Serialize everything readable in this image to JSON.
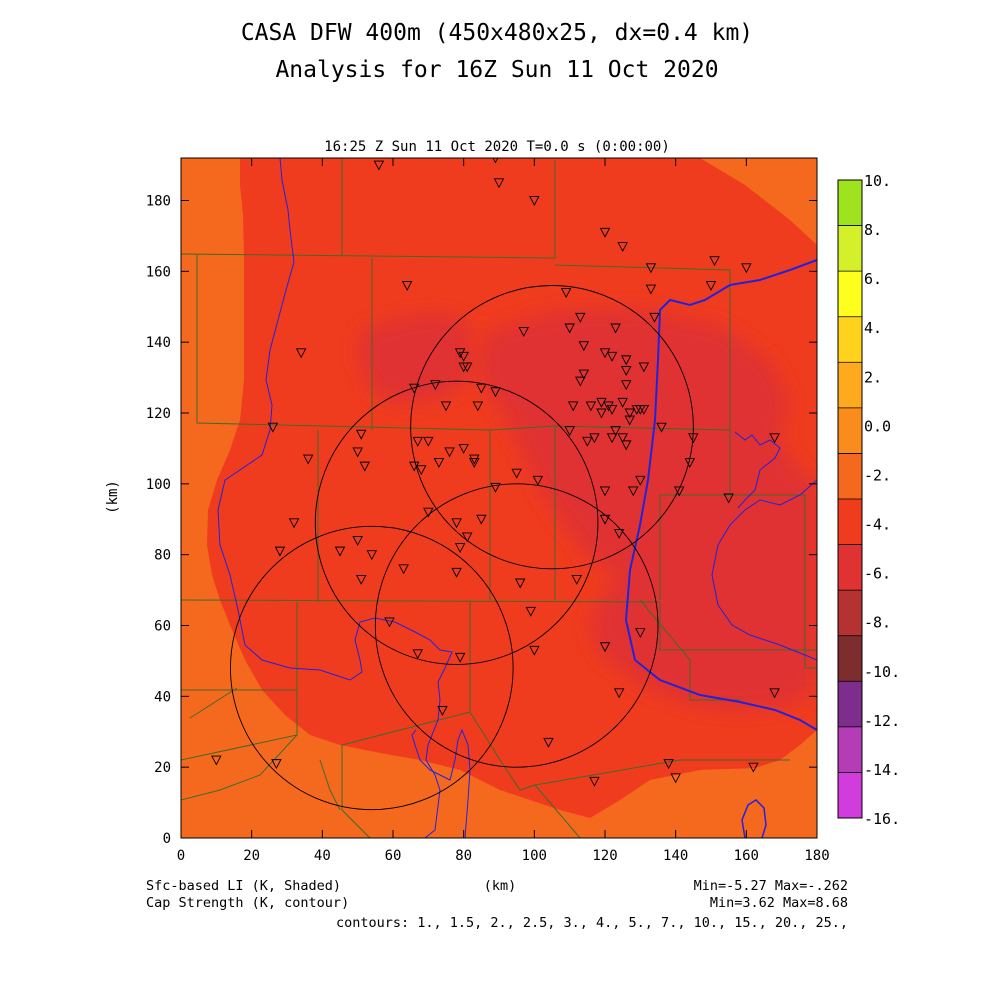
{
  "title": {
    "line1": "CASA DFW 400m (450x480x25, dx=0.4 km)",
    "line2": "Analysis for 16Z Sun 11 Oct 2020"
  },
  "subtitle": "16:25 Z Sun 11 Oct 2020   T=0.0 s (0:00:00)",
  "footer": {
    "shaded_label": "Sfc-based LI (K, Shaded)",
    "contour_label": "Cap Strength (K, contour)",
    "xunit": "(km)",
    "minmax1": "Min=-5.27 Max=-.262",
    "minmax2": "Min=3.62 Max=8.68",
    "contours": "contours: 1., 1.5, 2., 2.5, 3., 4., 5., 7., 10., 15., 20., 25.,"
  },
  "chart_data": {
    "type": "heatmap",
    "title": "CASA DFW 400m (450x480x25, dx=0.4 km)",
    "xlabel": "(km)",
    "ylabel": "(km)",
    "xlim": [
      0,
      180
    ],
    "ylim": [
      0,
      192
    ],
    "xticks": [
      0,
      20,
      40,
      60,
      80,
      100,
      120,
      140,
      160,
      180
    ],
    "yticks": [
      0,
      20,
      40,
      60,
      80,
      100,
      120,
      140,
      160,
      180
    ],
    "shaded_field": "Sfc-based LI (K)",
    "shaded_min": -5.27,
    "shaded_max": -0.262,
    "contour_field": "Cap Strength (K)",
    "contour_min": 3.62,
    "contour_max": 8.68,
    "contour_levels": [
      1,
      1.5,
      2,
      2.5,
      3,
      4,
      5,
      7,
      10,
      15,
      20,
      25
    ],
    "colorbar": {
      "labels": [
        "10.",
        "8.",
        "6.",
        "4.",
        "2.",
        "0.0",
        "-2.",
        "-4.",
        "-6.",
        "-8.",
        "-10.",
        "-12.",
        "-14.",
        "-16."
      ],
      "colors": [
        "#9fe21e",
        "#d4f02a",
        "#ffff1e",
        "#ffd21e",
        "#ffaa1e",
        "#fa8c1e",
        "#f5691e",
        "#f03c1e",
        "#e03232",
        "#b43232",
        "#7d2d2d",
        "#7d2d8c",
        "#b43cb4",
        "#d23cdc"
      ]
    },
    "radar_circles": [
      {
        "x": 54,
        "y": 48
      },
      {
        "x": 78,
        "y": 89
      },
      {
        "x": 105,
        "y": 116
      },
      {
        "x": 95,
        "y": 60
      }
    ],
    "radar_radius_km": 40,
    "stations": [
      [
        56,
        190
      ],
      [
        89,
        192
      ],
      [
        90,
        185
      ],
      [
        100,
        180
      ],
      [
        120,
        171
      ],
      [
        125,
        167
      ],
      [
        133,
        161
      ],
      [
        151,
        163
      ],
      [
        160,
        161
      ],
      [
        64,
        156
      ],
      [
        150,
        156
      ],
      [
        109,
        154
      ],
      [
        133,
        155
      ],
      [
        113,
        147
      ],
      [
        134,
        147
      ],
      [
        97,
        143
      ],
      [
        110,
        144
      ],
      [
        123,
        144
      ],
      [
        114,
        139
      ],
      [
        120,
        137
      ],
      [
        122,
        136
      ],
      [
        79,
        137
      ],
      [
        80,
        136
      ],
      [
        80,
        133
      ],
      [
        81,
        133
      ],
      [
        114,
        131
      ],
      [
        126,
        135
      ],
      [
        34,
        137
      ],
      [
        113,
        129
      ],
      [
        126,
        132
      ],
      [
        131,
        133
      ],
      [
        126,
        128
      ],
      [
        89,
        126
      ],
      [
        85,
        127
      ],
      [
        66,
        127
      ],
      [
        72,
        128
      ],
      [
        84,
        122
      ],
      [
        75,
        122
      ],
      [
        119,
        123
      ],
      [
        125,
        123
      ],
      [
        111,
        122
      ],
      [
        121,
        122
      ],
      [
        116,
        122
      ],
      [
        122,
        121
      ],
      [
        119,
        120
      ],
      [
        110,
        115
      ],
      [
        130,
        121
      ],
      [
        131,
        121
      ],
      [
        127,
        120
      ],
      [
        129,
        121
      ],
      [
        123,
        115
      ],
      [
        127,
        118
      ],
      [
        136,
        116
      ],
      [
        26,
        116
      ],
      [
        145,
        113
      ],
      [
        168,
        113
      ],
      [
        51,
        114
      ],
      [
        117,
        113
      ],
      [
        122,
        113
      ],
      [
        125,
        113
      ],
      [
        67,
        112
      ],
      [
        70,
        112
      ],
      [
        80,
        110
      ],
      [
        115,
        112
      ],
      [
        126,
        111
      ],
      [
        50,
        109
      ],
      [
        73,
        106
      ],
      [
        76,
        109
      ],
      [
        83,
        106
      ],
      [
        83,
        107
      ],
      [
        36,
        107
      ],
      [
        52,
        105
      ],
      [
        66,
        105
      ],
      [
        68,
        104
      ],
      [
        144,
        106
      ],
      [
        95,
        103
      ],
      [
        101,
        101
      ],
      [
        120,
        98
      ],
      [
        128,
        98
      ],
      [
        130,
        101
      ],
      [
        141,
        98
      ],
      [
        155,
        96
      ],
      [
        89,
        99
      ],
      [
        70,
        92
      ],
      [
        120,
        90
      ],
      [
        78,
        89
      ],
      [
        85,
        90
      ],
      [
        32,
        89
      ],
      [
        124,
        86
      ],
      [
        81,
        85
      ],
      [
        50,
        84
      ],
      [
        28,
        81
      ],
      [
        45,
        81
      ],
      [
        79,
        82
      ],
      [
        54,
        80
      ],
      [
        63,
        76
      ],
      [
        78,
        75
      ],
      [
        112,
        73
      ],
      [
        96,
        72
      ],
      [
        51,
        73
      ],
      [
        99,
        64
      ],
      [
        67,
        52
      ],
      [
        79,
        51
      ],
      [
        100,
        53
      ],
      [
        120,
        54
      ],
      [
        130,
        58
      ],
      [
        124,
        41
      ],
      [
        168,
        41
      ],
      [
        59,
        61
      ],
      [
        104,
        27
      ],
      [
        74,
        36
      ],
      [
        10,
        22
      ],
      [
        27,
        21
      ],
      [
        138,
        21
      ],
      [
        140,
        17
      ],
      [
        162,
        20
      ],
      [
        117,
        16
      ]
    ]
  }
}
